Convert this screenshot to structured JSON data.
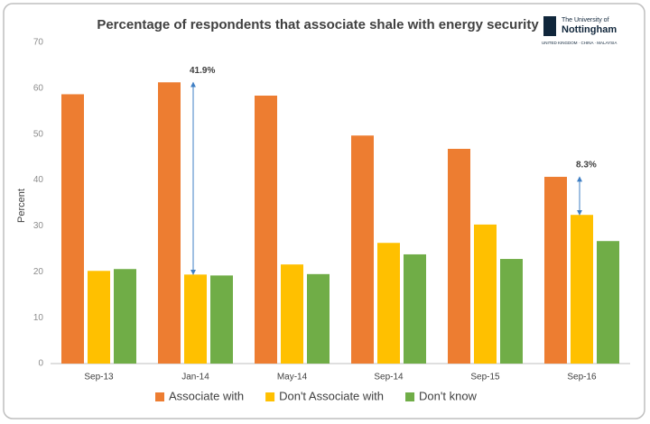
{
  "chart_data": {
    "type": "bar",
    "title": "Percentage of respondents that associate shale with energy security",
    "y_label": "Percent",
    "categories": [
      "Sep-13",
      "Jan-14",
      "May-14",
      "Sep-14",
      "Sep-15",
      "Sep-16"
    ],
    "series": [
      {
        "name": "Associate with",
        "color": "#ed7d31",
        "values": [
          58.7,
          61.3,
          58.4,
          49.7,
          46.8,
          40.7
        ]
      },
      {
        "name": "Don't Associate with",
        "color": "#ffc000",
        "values": [
          20.2,
          19.4,
          21.6,
          26.3,
          30.3,
          32.4
        ]
      },
      {
        "name": "Don't know",
        "color": "#70ad47",
        "values": [
          20.6,
          19.2,
          19.5,
          23.8,
          22.8,
          26.7
        ]
      }
    ],
    "ylim": [
      0,
      70
    ],
    "yticks": [
      0,
      10,
      20,
      30,
      40,
      50,
      60,
      70
    ],
    "grid": false,
    "legend": "bottom",
    "annotations": [
      {
        "value": 41.9,
        "label": "41.9%",
        "category": "Jan-14"
      },
      {
        "value": 8.3,
        "label": "8.3%",
        "category": "Sep-16"
      }
    ]
  },
  "logo": {
    "line1": "The University of",
    "line2": "Nottingham",
    "line3": "UNITED KINGDOM · CHINA · MALAYSIA"
  }
}
